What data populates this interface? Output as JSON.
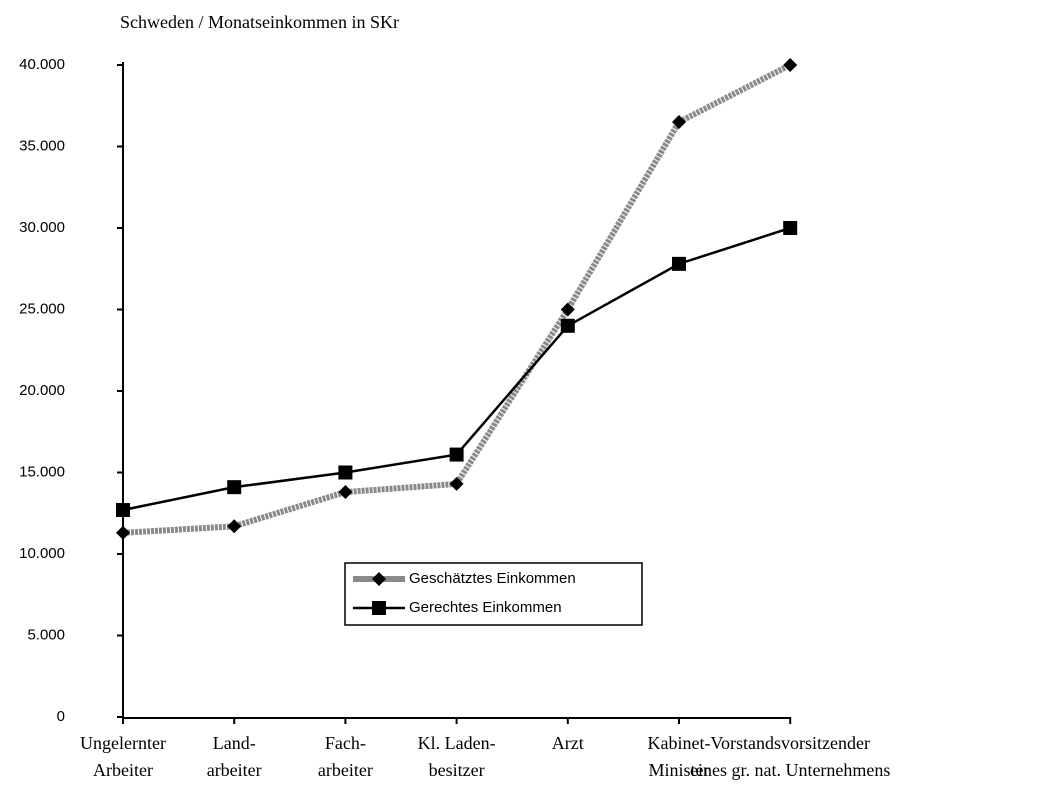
{
  "chart_data": {
    "type": "line",
    "title": "Schweden / Monatseinkommen in SKr",
    "categories": [
      [
        "Ungelernter",
        "Arbeiter"
      ],
      [
        "Land-",
        "arbeiter"
      ],
      [
        "Fach-",
        "arbeiter"
      ],
      [
        "Kl. Laden-",
        "besitzer"
      ],
      [
        "Arzt"
      ],
      [
        "Kabinet-",
        "Minister"
      ],
      [
        "Vorstandsvorsitzender",
        "eines gr. nat. Unternehmens"
      ]
    ],
    "series": [
      {
        "name": "Geschätztes Einkommen",
        "color": "#8a8a8a",
        "marker": "diamond",
        "values": [
          11300,
          11700,
          13800,
          14300,
          25000,
          36500,
          40000
        ]
      },
      {
        "name": "Gerechtes Einkommen",
        "color": "#000000",
        "marker": "square",
        "values": [
          12700,
          14100,
          15000,
          16100,
          24000,
          27800,
          30000
        ]
      }
    ],
    "ylim": [
      0,
      40000
    ],
    "yticks": [
      0,
      {
        "value": 5000,
        "label": "5.000"
      },
      {
        "value": 10000,
        "label": "10.000"
      },
      {
        "value": 15000,
        "label": "15.000"
      },
      {
        "value": 20000,
        "label": "20.000"
      },
      {
        "value": 25000,
        "label": "25.000"
      },
      {
        "value": 30000,
        "label": "30.000"
      },
      {
        "value": 35000,
        "label": "35.000"
      },
      {
        "value": 40000,
        "label": "40.000"
      }
    ],
    "grid": false,
    "legend": "lower center"
  }
}
